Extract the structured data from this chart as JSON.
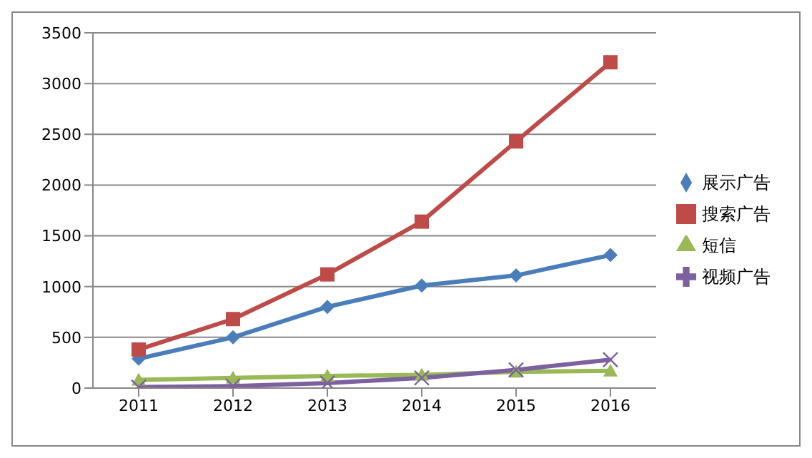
{
  "chart_data": {
    "type": "line",
    "categories": [
      "2011",
      "2012",
      "2013",
      "2014",
      "2015",
      "2016"
    ],
    "series": [
      {
        "name": "展示广告",
        "color": "#4a7ebb",
        "marker": "diamond",
        "values": [
          290,
          500,
          800,
          1010,
          1110,
          1310
        ]
      },
      {
        "name": "搜索广告",
        "color": "#be4b48",
        "marker": "square",
        "values": [
          380,
          680,
          1120,
          1640,
          2430,
          3210
        ]
      },
      {
        "name": "短信",
        "color": "#98b954",
        "marker": "triangle",
        "values": [
          80,
          100,
          120,
          130,
          160,
          170
        ]
      },
      {
        "name": "视频广告",
        "color": "#7d60a0",
        "marker": "cross",
        "values": [
          10,
          20,
          50,
          100,
          180,
          280
        ]
      }
    ],
    "ylim": [
      0,
      3500
    ],
    "yticks": [
      0,
      500,
      1000,
      1500,
      2000,
      2500,
      3000,
      3500
    ],
    "grid": "y",
    "legend": "right"
  }
}
